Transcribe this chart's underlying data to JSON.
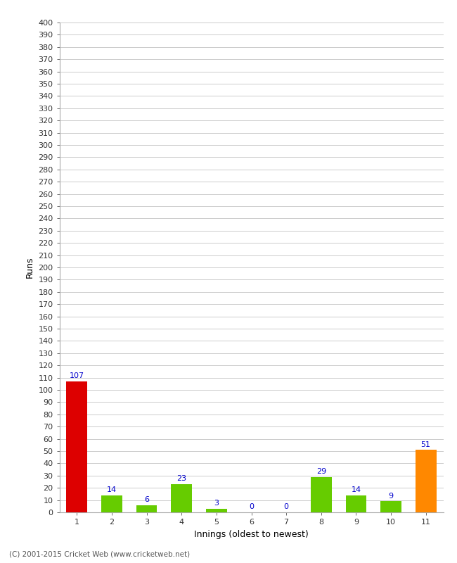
{
  "innings": [
    1,
    2,
    3,
    4,
    5,
    6,
    7,
    8,
    9,
    10,
    11
  ],
  "runs": [
    107,
    14,
    6,
    23,
    3,
    0,
    0,
    29,
    14,
    9,
    51
  ],
  "bar_colors": [
    "#dd0000",
    "#66cc00",
    "#66cc00",
    "#66cc00",
    "#66cc00",
    "#66cc00",
    "#66cc00",
    "#66cc00",
    "#66cc00",
    "#66cc00",
    "#ff8800"
  ],
  "xlabel": "Innings (oldest to newest)",
  "ylabel": "Runs",
  "ylim": [
    0,
    400
  ],
  "yticks": [
    0,
    10,
    20,
    30,
    40,
    50,
    60,
    70,
    80,
    90,
    100,
    110,
    120,
    130,
    140,
    150,
    160,
    170,
    180,
    190,
    200,
    210,
    220,
    230,
    240,
    250,
    260,
    270,
    280,
    290,
    300,
    310,
    320,
    330,
    340,
    350,
    360,
    370,
    380,
    390,
    400
  ],
  "label_color": "#0000cc",
  "label_fontsize": 8,
  "axis_fontsize": 9,
  "tick_fontsize": 8,
  "footer": "(C) 2001-2015 Cricket Web (www.cricketweb.net)",
  "background_color": "#ffffff",
  "grid_color": "#cccccc",
  "bar_width": 0.6
}
